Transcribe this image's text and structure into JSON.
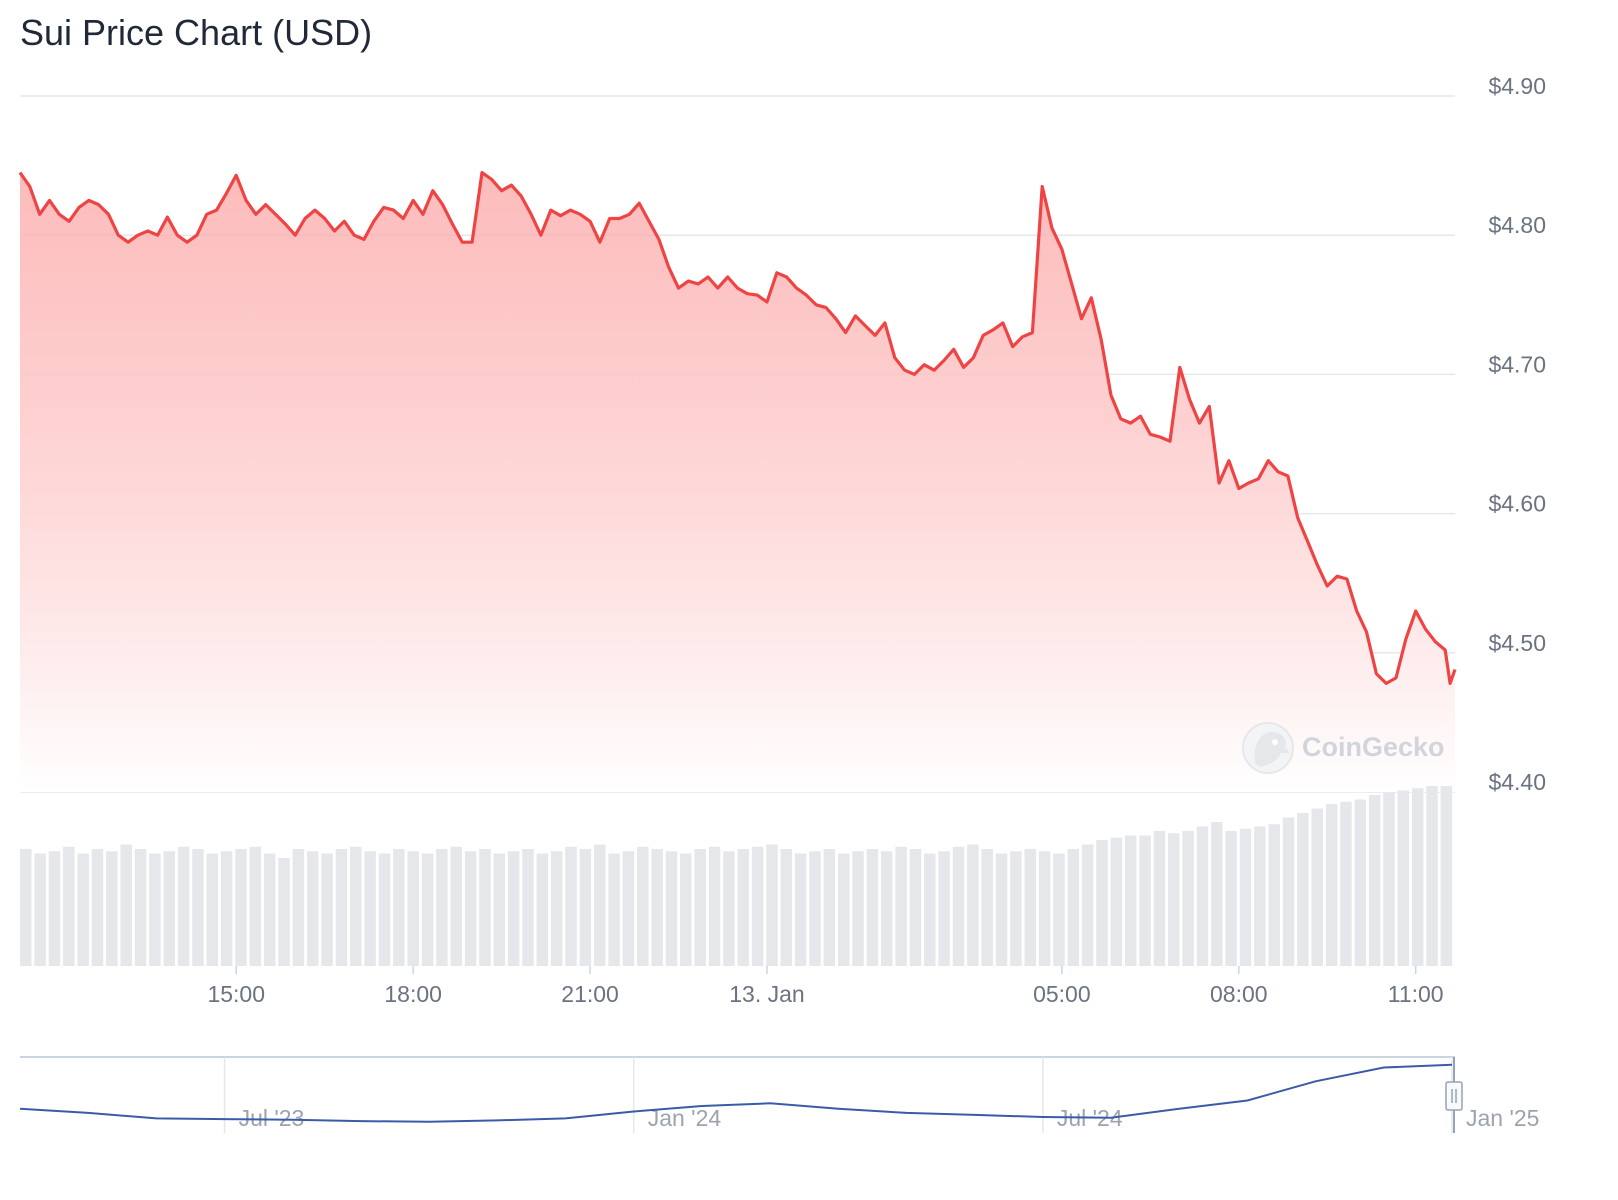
{
  "chart_data": {
    "type": "line",
    "title": "Sui Price Chart (USD)",
    "currency": "USD",
    "y_axis": {
      "ticks": [
        4.4,
        4.5,
        4.6,
        4.7,
        4.8,
        4.9
      ],
      "tick_labels": [
        "$4.40",
        "$4.50",
        "$4.60",
        "$4.70",
        "$4.80",
        "$4.90"
      ],
      "ylim": [
        4.4,
        4.9
      ]
    },
    "x_axis": {
      "tick_labels": [
        "15:00",
        "18:00",
        "21:00",
        "13. Jan",
        "05:00",
        "08:00",
        "11:00"
      ],
      "tick_times": [
        "12 Jan 15:00",
        "12 Jan 18:00",
        "12 Jan 21:00",
        "13 Jan 00:00",
        "13 Jan 05:00",
        "13 Jan 08:00",
        "13 Jan 11:00"
      ],
      "xlim": [
        "12 Jan 11:20",
        "13 Jan 11:40"
      ]
    },
    "series": [
      {
        "color": "#ef4444",
        "fill": "area-gradient",
        "points": [
          [
            "12 Jan 11:20",
            4.845
          ],
          [
            "12 Jan 11:30",
            4.835
          ],
          [
            "12 Jan 11:40",
            4.815
          ],
          [
            "12 Jan 11:50",
            4.825
          ],
          [
            "12 Jan 12:00",
            4.815
          ],
          [
            "12 Jan 12:10",
            4.81
          ],
          [
            "12 Jan 12:20",
            4.82
          ],
          [
            "12 Jan 12:30",
            4.825
          ],
          [
            "12 Jan 12:40",
            4.822
          ],
          [
            "12 Jan 12:50",
            4.815
          ],
          [
            "12 Jan 13:00",
            4.8
          ],
          [
            "12 Jan 13:10",
            4.795
          ],
          [
            "12 Jan 13:20",
            4.8
          ],
          [
            "12 Jan 13:30",
            4.803
          ],
          [
            "12 Jan 13:40",
            4.8
          ],
          [
            "12 Jan 13:50",
            4.813
          ],
          [
            "12 Jan 14:00",
            4.8
          ],
          [
            "12 Jan 14:10",
            4.795
          ],
          [
            "12 Jan 14:20",
            4.8
          ],
          [
            "12 Jan 14:30",
            4.815
          ],
          [
            "12 Jan 14:40",
            4.818
          ],
          [
            "12 Jan 14:50",
            4.83
          ],
          [
            "12 Jan 15:00",
            4.843
          ],
          [
            "12 Jan 15:10",
            4.825
          ],
          [
            "12 Jan 15:20",
            4.815
          ],
          [
            "12 Jan 15:30",
            4.822
          ],
          [
            "12 Jan 15:40",
            4.815
          ],
          [
            "12 Jan 15:50",
            4.808
          ],
          [
            "12 Jan 16:00",
            4.8
          ],
          [
            "12 Jan 16:10",
            4.812
          ],
          [
            "12 Jan 16:20",
            4.818
          ],
          [
            "12 Jan 16:30",
            4.812
          ],
          [
            "12 Jan 16:40",
            4.803
          ],
          [
            "12 Jan 16:50",
            4.81
          ],
          [
            "12 Jan 17:00",
            4.8
          ],
          [
            "12 Jan 17:10",
            4.797
          ],
          [
            "12 Jan 17:20",
            4.81
          ],
          [
            "12 Jan 17:30",
            4.82
          ],
          [
            "12 Jan 17:40",
            4.818
          ],
          [
            "12 Jan 17:50",
            4.812
          ],
          [
            "12 Jan 18:00",
            4.825
          ],
          [
            "12 Jan 18:10",
            4.815
          ],
          [
            "12 Jan 18:20",
            4.832
          ],
          [
            "12 Jan 18:30",
            4.822
          ],
          [
            "12 Jan 18:40",
            4.808
          ],
          [
            "12 Jan 18:50",
            4.795
          ],
          [
            "12 Jan 19:00",
            4.795
          ],
          [
            "12 Jan 19:10",
            4.845
          ],
          [
            "12 Jan 19:20",
            4.84
          ],
          [
            "12 Jan 19:30",
            4.832
          ],
          [
            "12 Jan 19:40",
            4.836
          ],
          [
            "12 Jan 19:50",
            4.828
          ],
          [
            "12 Jan 20:00",
            4.815
          ],
          [
            "12 Jan 20:10",
            4.8
          ],
          [
            "12 Jan 20:20",
            4.818
          ],
          [
            "12 Jan 20:30",
            4.814
          ],
          [
            "12 Jan 20:40",
            4.818
          ],
          [
            "12 Jan 20:50",
            4.815
          ],
          [
            "12 Jan 21:00",
            4.81
          ],
          [
            "12 Jan 21:10",
            4.795
          ],
          [
            "12 Jan 21:20",
            4.812
          ],
          [
            "12 Jan 21:30",
            4.812
          ],
          [
            "12 Jan 21:40",
            4.815
          ],
          [
            "12 Jan 21:50",
            4.823
          ],
          [
            "12 Jan 22:00",
            4.81
          ],
          [
            "12 Jan 22:10",
            4.797
          ],
          [
            "12 Jan 22:20",
            4.777
          ],
          [
            "12 Jan 22:30",
            4.762
          ],
          [
            "12 Jan 22:40",
            4.767
          ],
          [
            "12 Jan 22:50",
            4.765
          ],
          [
            "12 Jan 23:00",
            4.77
          ],
          [
            "12 Jan 23:10",
            4.762
          ],
          [
            "12 Jan 23:20",
            4.77
          ],
          [
            "12 Jan 23:30",
            4.762
          ],
          [
            "12 Jan 23:40",
            4.758
          ],
          [
            "12 Jan 23:50",
            4.757
          ],
          [
            "13 Jan 00:00",
            4.752
          ],
          [
            "13 Jan 00:10",
            4.773
          ],
          [
            "13 Jan 00:20",
            4.77
          ],
          [
            "13 Jan 00:30",
            4.762
          ],
          [
            "13 Jan 00:40",
            4.757
          ],
          [
            "13 Jan 00:50",
            4.75
          ],
          [
            "13 Jan 01:00",
            4.748
          ],
          [
            "13 Jan 01:10",
            4.74
          ],
          [
            "13 Jan 01:20",
            4.73
          ],
          [
            "13 Jan 01:30",
            4.742
          ],
          [
            "13 Jan 01:40",
            4.735
          ],
          [
            "13 Jan 01:50",
            4.728
          ],
          [
            "13 Jan 02:00",
            4.737
          ],
          [
            "13 Jan 02:10",
            4.712
          ],
          [
            "13 Jan 02:20",
            4.703
          ],
          [
            "13 Jan 02:30",
            4.7
          ],
          [
            "13 Jan 02:40",
            4.707
          ],
          [
            "13 Jan 02:50",
            4.703
          ],
          [
            "13 Jan 03:00",
            4.71
          ],
          [
            "13 Jan 03:10",
            4.718
          ],
          [
            "13 Jan 03:20",
            4.705
          ],
          [
            "13 Jan 03:30",
            4.712
          ],
          [
            "13 Jan 03:40",
            4.728
          ],
          [
            "13 Jan 03:50",
            4.732
          ],
          [
            "13 Jan 04:00",
            4.737
          ],
          [
            "13 Jan 04:10",
            4.72
          ],
          [
            "13 Jan 04:20",
            4.727
          ],
          [
            "13 Jan 04:30",
            4.73
          ],
          [
            "13 Jan 04:40",
            4.835
          ],
          [
            "13 Jan 04:50",
            4.805
          ],
          [
            "13 Jan 05:00",
            4.79
          ],
          [
            "13 Jan 05:10",
            4.765
          ],
          [
            "13 Jan 05:20",
            4.74
          ],
          [
            "13 Jan 05:30",
            4.755
          ],
          [
            "13 Jan 05:40",
            4.725
          ],
          [
            "13 Jan 05:50",
            4.685
          ],
          [
            "13 Jan 06:00",
            4.668
          ],
          [
            "13 Jan 06:10",
            4.665
          ],
          [
            "13 Jan 06:20",
            4.67
          ],
          [
            "13 Jan 06:30",
            4.657
          ],
          [
            "13 Jan 06:40",
            4.655
          ],
          [
            "13 Jan 06:50",
            4.652
          ],
          [
            "13 Jan 07:00",
            4.705
          ],
          [
            "13 Jan 07:10",
            4.682
          ],
          [
            "13 Jan 07:20",
            4.665
          ],
          [
            "13 Jan 07:30",
            4.677
          ],
          [
            "13 Jan 07:40",
            4.622
          ],
          [
            "13 Jan 07:50",
            4.638
          ],
          [
            "13 Jan 08:00",
            4.618
          ],
          [
            "13 Jan 08:10",
            4.622
          ],
          [
            "13 Jan 08:20",
            4.625
          ],
          [
            "13 Jan 08:30",
            4.638
          ],
          [
            "13 Jan 08:40",
            4.63
          ],
          [
            "13 Jan 08:50",
            4.627
          ],
          [
            "13 Jan 09:00",
            4.597
          ],
          [
            "13 Jan 09:10",
            4.58
          ],
          [
            "13 Jan 09:20",
            4.563
          ],
          [
            "13 Jan 09:30",
            4.548
          ],
          [
            "13 Jan 09:40",
            4.555
          ],
          [
            "13 Jan 09:50",
            4.553
          ],
          [
            "13 Jan 10:00",
            4.53
          ],
          [
            "13 Jan 10:10",
            4.515
          ],
          [
            "13 Jan 10:20",
            4.485
          ],
          [
            "13 Jan 10:30",
            4.478
          ],
          [
            "13 Jan 10:40",
            4.482
          ],
          [
            "13 Jan 10:50",
            4.51
          ],
          [
            "13 Jan 11:00",
            4.53
          ],
          [
            "13 Jan 11:10",
            4.517
          ],
          [
            "13 Jan 11:20",
            4.508
          ],
          [
            "13 Jan 11:30",
            4.502
          ],
          [
            "13 Jan 11:35",
            4.478
          ],
          [
            "13 Jan 11:40",
            4.488
          ]
        ]
      }
    ],
    "volume": {
      "relative_values": [
        0.52,
        0.5,
        0.51,
        0.53,
        0.5,
        0.52,
        0.51,
        0.54,
        0.52,
        0.5,
        0.51,
        0.53,
        0.52,
        0.5,
        0.51,
        0.52,
        0.53,
        0.5,
        0.48,
        0.52,
        0.51,
        0.5,
        0.52,
        0.53,
        0.51,
        0.5,
        0.52,
        0.51,
        0.5,
        0.52,
        0.53,
        0.51,
        0.52,
        0.5,
        0.51,
        0.52,
        0.5,
        0.51,
        0.53,
        0.52,
        0.54,
        0.5,
        0.51,
        0.53,
        0.52,
        0.51,
        0.5,
        0.52,
        0.53,
        0.51,
        0.52,
        0.53,
        0.54,
        0.52,
        0.5,
        0.51,
        0.52,
        0.5,
        0.51,
        0.52,
        0.51,
        0.53,
        0.52,
        0.5,
        0.51,
        0.53,
        0.54,
        0.52,
        0.5,
        0.51,
        0.52,
        0.51,
        0.5,
        0.52,
        0.54,
        0.56,
        0.57,
        0.58,
        0.58,
        0.6,
        0.59,
        0.6,
        0.62,
        0.64,
        0.6,
        0.61,
        0.62,
        0.63,
        0.66,
        0.68,
        0.7,
        0.72,
        0.73,
        0.74,
        0.76,
        0.77,
        0.78,
        0.79,
        0.8,
        0.8
      ]
    },
    "navigator": {
      "tick_labels": [
        "Jul '23",
        "Jan '24",
        "Jul '24",
        "Jan '25"
      ],
      "tick_dates": [
        "2023-07",
        "2024-01",
        "2024-07",
        "2025-01"
      ],
      "points": [
        [
          "2023-04",
          1.4
        ],
        [
          "2023-05",
          1.1
        ],
        [
          "2023-06",
          0.7
        ],
        [
          "2023-07",
          0.65
        ],
        [
          "2023-08",
          0.6
        ],
        [
          "2023-09",
          0.5
        ],
        [
          "2023-10",
          0.45
        ],
        [
          "2023-11",
          0.55
        ],
        [
          "2023-12",
          0.7
        ],
        [
          "2024-01",
          1.2
        ],
        [
          "2024-02",
          1.6
        ],
        [
          "2024-03",
          1.8
        ],
        [
          "2024-04",
          1.4
        ],
        [
          "2024-05",
          1.1
        ],
        [
          "2024-06",
          0.95
        ],
        [
          "2024-07",
          0.8
        ],
        [
          "2024-08",
          0.75
        ],
        [
          "2024-09",
          1.4
        ],
        [
          "2024-10",
          2.0
        ],
        [
          "2024-11",
          3.4
        ],
        [
          "2024-12",
          4.4
        ],
        [
          "2025-01",
          4.6
        ]
      ]
    },
    "grid": true,
    "legend": "none"
  },
  "watermark": {
    "text": "CoinGecko",
    "icon": "gecko-logo-icon"
  },
  "colors": {
    "line": "#ef4444",
    "fill_top": "#fca5a5",
    "fill_bottom": "#ffffff",
    "grid": "#e5e7eb",
    "volume": "#e5e7eb",
    "navigator_line": "#3b5ba9",
    "axis_text": "#6b7280"
  }
}
